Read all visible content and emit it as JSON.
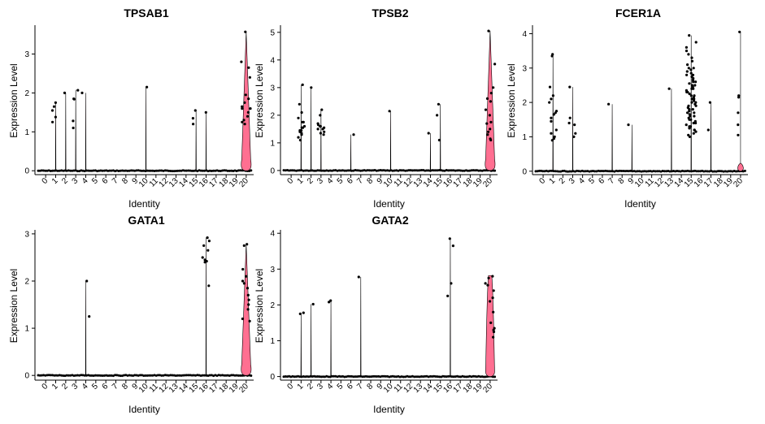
{
  "chart_data": [
    {
      "type": "violin",
      "title": "TPSAB1",
      "xlabel": "Identity",
      "ylabel": "Expression Level",
      "categories": [
        "0",
        "1",
        "2",
        "3",
        "4",
        "5",
        "6",
        "7",
        "8",
        "9",
        "10",
        "11",
        "12",
        "13",
        "14",
        "15",
        "16",
        "17",
        "18",
        "19",
        "20"
      ],
      "yticks": [
        0,
        1,
        2,
        3
      ],
      "ylim": [
        -0.1,
        3.7
      ],
      "violin_color": "#ff6f91",
      "series": [
        {
          "category": "1",
          "violin_max": 1.75,
          "points": [
            1.38,
            1.55,
            1.65,
            1.75,
            1.25
          ]
        },
        {
          "category": "2",
          "violin_max": 2.0,
          "points": [
            2.0
          ]
        },
        {
          "category": "3",
          "violin_max": 2.08,
          "points": [
            1.85,
            1.84,
            2.07,
            1.28,
            1.1
          ]
        },
        {
          "category": "4",
          "violin_max": 2.0,
          "points": [
            2.0
          ]
        },
        {
          "category": "10",
          "violin_max": 2.15,
          "points": [
            2.15
          ]
        },
        {
          "category": "15",
          "violin_max": 1.55,
          "points": [
            1.35,
            1.55,
            1.2
          ]
        },
        {
          "category": "16",
          "violin_max": 1.5,
          "points": [
            1.5
          ]
        },
        {
          "category": "20",
          "violin_max": 3.57,
          "shape": "wide",
          "points": [
            3.57,
            2.8,
            2.65,
            1.95,
            1.85,
            1.75,
            1.6,
            1.5,
            1.4,
            1.3,
            1.2,
            1.6,
            2.4,
            1.25,
            1.65
          ]
        }
      ]
    },
    {
      "type": "violin",
      "title": "TPSB2",
      "xlabel": "Identity",
      "ylabel": "Expression Level",
      "categories": [
        "0",
        "1",
        "2",
        "3",
        "4",
        "5",
        "6",
        "7",
        "8",
        "9",
        "10",
        "11",
        "12",
        "13",
        "14",
        "15",
        "16",
        "17",
        "18",
        "19",
        "20"
      ],
      "yticks": [
        0,
        1,
        2,
        3,
        4,
        5
      ],
      "ylim": [
        -0.15,
        5.2
      ],
      "violin_color": "#ff6f91",
      "series": [
        {
          "category": "1",
          "violin_max": 3.1,
          "points": [
            3.1,
            2.4,
            2.1,
            1.9,
            1.75,
            1.6,
            1.55,
            1.45,
            1.4,
            1.35,
            1.3,
            1.2,
            1.1,
            1.75,
            1.55,
            1.45
          ]
        },
        {
          "category": "2",
          "violin_max": 3.0,
          "points": [
            3.0
          ]
        },
        {
          "category": "3",
          "violin_max": 2.2,
          "points": [
            2.2,
            2.0,
            1.7,
            1.65,
            1.6,
            1.55,
            1.5,
            1.4,
            1.35,
            1.3,
            1.6,
            1.5
          ]
        },
        {
          "category": "6",
          "violin_max": 1.3,
          "points": [
            1.3
          ]
        },
        {
          "category": "10",
          "violin_max": 2.15,
          "points": [
            2.15
          ]
        },
        {
          "category": "14",
          "violin_max": 1.35,
          "points": [
            1.35
          ]
        },
        {
          "category": "15",
          "violin_max": 2.4,
          "points": [
            2.4,
            2.0,
            1.1
          ]
        },
        {
          "category": "20",
          "violin_max": 5.05,
          "shape": "wide",
          "points": [
            5.05,
            3.85,
            3.0,
            2.8,
            2.5,
            2.2,
            2.0,
            1.7,
            1.5,
            1.4,
            1.3,
            1.15,
            1.1,
            2.6,
            1.75
          ]
        }
      ]
    },
    {
      "type": "violin",
      "title": "FCER1A",
      "xlabel": "Identity",
      "ylabel": "Expression Level",
      "categories": [
        "0",
        "1",
        "2",
        "3",
        "4",
        "5",
        "6",
        "7",
        "8",
        "9",
        "10",
        "11",
        "12",
        "13",
        "14",
        "15",
        "16",
        "17",
        "18",
        "19",
        "20"
      ],
      "yticks": [
        0,
        1,
        2,
        3,
        4
      ],
      "ylim": [
        -0.1,
        4.2
      ],
      "violin_color": "#ff6f91",
      "series": [
        {
          "category": "1",
          "violin_max": 3.4,
          "points": [
            3.4,
            3.35,
            2.45,
            2.2,
            2.1,
            2.0,
            1.75,
            1.65,
            1.55,
            1.45,
            1.2,
            1.1,
            1.0,
            0.95,
            0.9,
            1.7
          ]
        },
        {
          "category": "3",
          "violin_max": 2.45,
          "points": [
            2.45,
            1.55,
            1.4,
            1.35,
            1.1,
            1.0
          ]
        },
        {
          "category": "7",
          "violin_max": 1.95,
          "points": [
            1.95
          ]
        },
        {
          "category": "9",
          "violin_max": 1.35,
          "points": [
            1.35
          ]
        },
        {
          "category": "13",
          "violin_max": 2.4,
          "points": [
            2.4
          ]
        },
        {
          "category": "15",
          "violin_max": 3.95,
          "cloud": true,
          "points": [
            3.95,
            3.75,
            3.6,
            3.5,
            3.4,
            3.3,
            3.2,
            3.1,
            3.0,
            2.95,
            2.9,
            2.85,
            2.8,
            2.75,
            2.7,
            2.65,
            2.6,
            2.55,
            2.5,
            2.45,
            2.4,
            2.35,
            2.3,
            2.25,
            2.2,
            2.15,
            2.1,
            2.05,
            2.0,
            1.95,
            1.9,
            1.85,
            1.8,
            1.75,
            1.7,
            1.65,
            1.6,
            1.55,
            1.5,
            1.45,
            1.4,
            1.35,
            1.3,
            1.25,
            1.2,
            1.15,
            1.1,
            1.05,
            1.0,
            2.6,
            2.4,
            2.2,
            2.0,
            1.8,
            1.6,
            1.4,
            1.2,
            3.0,
            2.8,
            2.5,
            2.3,
            2.1,
            1.9,
            1.7,
            1.5,
            1.3
          ]
        },
        {
          "category": "17",
          "violin_max": 2.0,
          "points": [
            2.0,
            1.2
          ]
        },
        {
          "category": "20",
          "violin_max": 4.05,
          "shape": "small",
          "points": [
            4.05,
            2.2,
            2.15,
            1.7,
            1.35,
            1.05
          ]
        }
      ]
    },
    {
      "type": "violin",
      "title": "GATA1",
      "xlabel": "Identity",
      "ylabel": "Expression Level",
      "categories": [
        "0",
        "1",
        "2",
        "3",
        "4",
        "5",
        "6",
        "7",
        "8",
        "9",
        "10",
        "11",
        "12",
        "13",
        "14",
        "15",
        "16",
        "17",
        "18",
        "19",
        "20"
      ],
      "yticks": [
        0,
        1,
        2,
        3
      ],
      "ylim": [
        -0.1,
        3.05
      ],
      "violin_color": "#ff6f91",
      "series": [
        {
          "category": "4",
          "violin_max": 2.0,
          "points": [
            2.0,
            1.25
          ]
        },
        {
          "category": "16",
          "violin_max": 2.92,
          "points": [
            2.92,
            2.85,
            2.75,
            2.65,
            2.5,
            2.45,
            2.42,
            2.4,
            1.9
          ]
        },
        {
          "category": "20",
          "violin_max": 2.78,
          "shape": "wide",
          "points": [
            2.78,
            2.75,
            2.25,
            2.0,
            1.95,
            1.85,
            1.7,
            1.6,
            1.5,
            1.4,
            1.2,
            1.15,
            2.1
          ]
        }
      ]
    },
    {
      "type": "violin",
      "title": "GATA2",
      "xlabel": "Identity",
      "ylabel": "Expression Level",
      "categories": [
        "0",
        "1",
        "2",
        "3",
        "4",
        "5",
        "6",
        "7",
        "8",
        "9",
        "10",
        "11",
        "12",
        "13",
        "14",
        "15",
        "16",
        "17",
        "18",
        "19",
        "20"
      ],
      "yticks": [
        0,
        1,
        2,
        3,
        4
      ],
      "ylim": [
        -0.1,
        4.05
      ],
      "violin_color": "#ff6f91",
      "series": [
        {
          "category": "1",
          "violin_max": 1.78,
          "points": [
            1.78,
            1.75
          ]
        },
        {
          "category": "2",
          "violin_max": 2.02,
          "points": [
            2.02
          ]
        },
        {
          "category": "4",
          "violin_max": 2.12,
          "points": [
            2.12,
            2.08
          ]
        },
        {
          "category": "7",
          "violin_max": 2.78,
          "points": [
            2.78
          ]
        },
        {
          "category": "16",
          "violin_max": 3.85,
          "points": [
            3.85,
            3.65,
            2.6,
            2.25
          ]
        },
        {
          "category": "20",
          "violin_max": 2.82,
          "shape": "box",
          "points": [
            2.8,
            2.75,
            2.6,
            2.55,
            2.4,
            2.1,
            1.8,
            1.5,
            1.35,
            1.3,
            1.25,
            1.1,
            2.2
          ]
        }
      ]
    }
  ]
}
